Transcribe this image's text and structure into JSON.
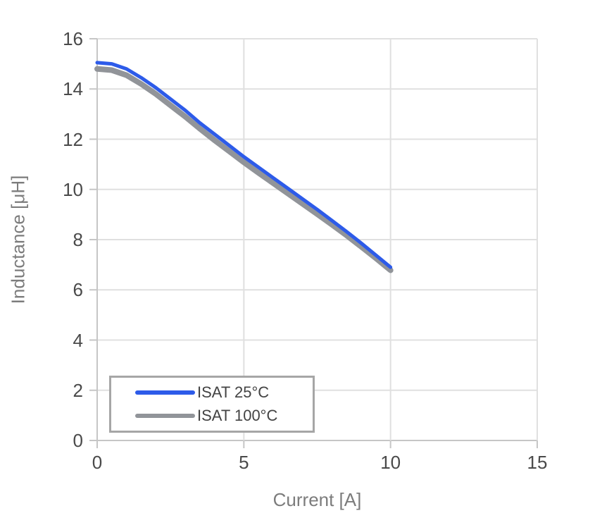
{
  "chart_data": {
    "type": "line",
    "title": "",
    "xlabel": "Current [A]",
    "ylabel": "Inductance [μH]",
    "xlim": [
      0,
      15
    ],
    "ylim": [
      0,
      16
    ],
    "x_ticks": [
      0,
      5,
      10,
      15
    ],
    "y_ticks": [
      0,
      2,
      4,
      6,
      8,
      10,
      12,
      14,
      16
    ],
    "grid": true,
    "legend_position": "inside-bottom-left",
    "x": [
      0,
      0.5,
      1,
      1.5,
      2,
      2.5,
      3,
      3.5,
      4,
      4.5,
      5,
      5.5,
      6,
      6.5,
      7,
      7.5,
      8,
      8.5,
      9,
      9.5,
      10
    ],
    "series": [
      {
        "name": "ISAT 25°C",
        "color": "#2d5be9",
        "values": [
          15.05,
          15.0,
          14.8,
          14.45,
          14.05,
          13.6,
          13.15,
          12.65,
          12.2,
          11.75,
          11.3,
          10.88,
          10.46,
          10.04,
          9.62,
          9.2,
          8.76,
          8.32,
          7.86,
          7.38,
          6.9
        ]
      },
      {
        "name": "ISAT 100°C",
        "color": "#919499",
        "values": [
          14.8,
          14.75,
          14.55,
          14.2,
          13.8,
          13.35,
          12.9,
          12.42,
          11.96,
          11.52,
          11.08,
          10.66,
          10.25,
          9.84,
          9.43,
          9.02,
          8.6,
          8.17,
          7.72,
          7.26,
          6.78
        ]
      }
    ],
    "colors": {
      "gridline": "#e0e0e0",
      "axis_line": "#c6c6c6",
      "tick_label": "#4a4a4a",
      "axis_title": "#7c7c7c",
      "legend_border": "#a6a6a6"
    }
  }
}
